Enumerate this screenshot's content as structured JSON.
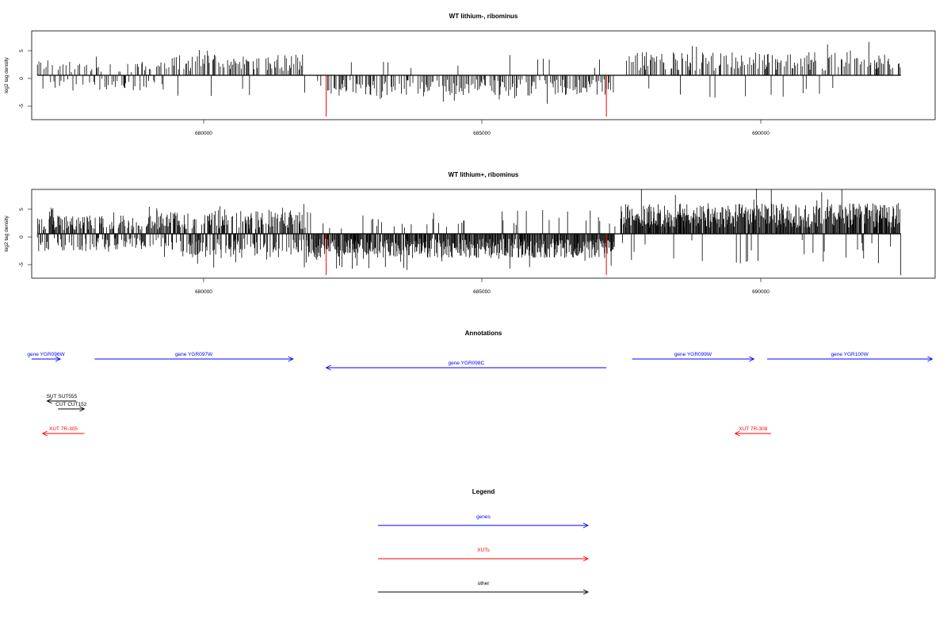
{
  "chart_data": [
    {
      "type": "bar",
      "title": "WT lithium-, ribominus",
      "xlabel": "",
      "ylabel": "log2 tag density",
      "xlim": [
        677400,
        693200
      ],
      "ylim": [
        -7.3,
        7.3
      ],
      "x_ticks": [
        "680000",
        "685000",
        "690000"
      ],
      "y_ticks": [
        "5",
        "0",
        "-5"
      ],
      "track_start": 677500,
      "track_end": 692600,
      "density": "sparse",
      "regions": [
        {
          "start": 677500,
          "end": 679700,
          "sign": "mixed",
          "level": 2.5
        },
        {
          "start": 679700,
          "end": 682200,
          "sign": "positive",
          "level": 3.5
        },
        {
          "start": 682400,
          "end": 687600,
          "sign": "negative",
          "level": 3.5
        },
        {
          "start": 687700,
          "end": 692600,
          "sign": "positive",
          "level": 3.8
        }
      ],
      "highlights": [
        {
          "x": 682550,
          "value": -6.8,
          "color": "#ff0000"
        },
        {
          "x": 687450,
          "value": -6.8,
          "color": "#ff0000"
        }
      ]
    },
    {
      "type": "bar",
      "title": "WT lithium+, ribominus",
      "xlabel": "",
      "ylabel": "log2 tag density",
      "xlim": [
        677400,
        693200
      ],
      "ylim": [
        -7.3,
        7.3
      ],
      "x_ticks": [
        "680000",
        "685000",
        "690000"
      ],
      "y_ticks": [
        "5",
        "0",
        "-5"
      ],
      "track_start": 677500,
      "track_end": 692600,
      "density": "dense",
      "regions": [
        {
          "start": 677500,
          "end": 679700,
          "sign": "mixed",
          "level": 3.0
        },
        {
          "start": 679700,
          "end": 682200,
          "sign": "mixed",
          "level": 4.0
        },
        {
          "start": 682200,
          "end": 687600,
          "sign": "negative",
          "level": 4.0
        },
        {
          "start": 687700,
          "end": 692600,
          "sign": "positive",
          "level": 5.0
        }
      ],
      "highlights": [
        {
          "x": 682550,
          "value": -6.8,
          "color": "#ff0000"
        },
        {
          "x": 687450,
          "value": -6.8,
          "color": "#ff0000"
        }
      ]
    }
  ],
  "annotations": {
    "title": "Annotations",
    "features": [
      {
        "label": "gene YGR096W",
        "start": 677400,
        "end": 677900,
        "strand": "+",
        "color": "#0000ff",
        "row": 0
      },
      {
        "label": "gene YGR097W",
        "start": 678500,
        "end": 681970,
        "strand": "+",
        "color": "#0000ff",
        "row": 0
      },
      {
        "label": "gene YGR098C",
        "start": 682550,
        "end": 687450,
        "strand": "-",
        "color": "#0000ff",
        "row": 1
      },
      {
        "label": "gene YGR099W",
        "start": 687900,
        "end": 690030,
        "strand": "+",
        "color": "#0000ff",
        "row": 0
      },
      {
        "label": "gene YGR100W",
        "start": 690260,
        "end": 693150,
        "strand": "+",
        "color": "#0000ff",
        "row": 0
      },
      {
        "label": "SUT SUT555",
        "start": 677670,
        "end": 678180,
        "strand": "-",
        "color": "#000000",
        "row": 2
      },
      {
        "label": "CUT CUT152",
        "start": 677860,
        "end": 678320,
        "strand": "+",
        "color": "#000000",
        "row": 3
      },
      {
        "label": "XUT 7R-305",
        "start": 677590,
        "end": 678320,
        "strand": "-",
        "color": "#ff0000",
        "row": 4
      },
      {
        "label": "XUT 7R-308",
        "start": 689700,
        "end": 690330,
        "strand": "-",
        "color": "#ff0000",
        "row": 4
      }
    ]
  },
  "legend": {
    "title": "Legend",
    "items": [
      {
        "label": "genes",
        "color": "#0000ff"
      },
      {
        "label": "XUTs",
        "color": "#ff0000"
      },
      {
        "label": "other",
        "color": "#000000"
      }
    ]
  }
}
